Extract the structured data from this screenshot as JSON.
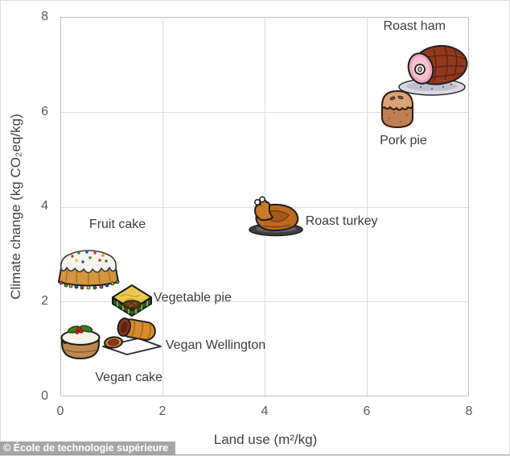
{
  "figure": {
    "background": "#ffffff",
    "watermark_text": "© École de technologie supérieure"
  },
  "colors": {
    "text": "#404040",
    "tick_text": "#595959",
    "label_text": "#3b3b3b",
    "grid": "#dcdcdc",
    "plot_border": "#bfbfbf",
    "watermark_bg": "#969696",
    "watermark_text": "#ffffff"
  },
  "chart_data": {
    "type": "scatter",
    "title": "",
    "xlabel": "Land use (m²/kg)",
    "ylabel": "Climate change (kg CO₂eq/kg)",
    "xlim": [
      0,
      8
    ],
    "ylim": [
      0,
      8
    ],
    "xticks": [
      0,
      2,
      4,
      6,
      8
    ],
    "yticks": [
      0,
      2,
      4,
      6,
      8
    ],
    "grid": true,
    "legend": false,
    "marker_style": "food-illustrations",
    "points": [
      {
        "label": "Roast ham",
        "x": 7.3,
        "y": 6.9,
        "icon": "roast-ham-icon",
        "label_position": "above"
      },
      {
        "label": "Pork pie",
        "x": 6.6,
        "y": 6.1,
        "icon": "pork-pie-icon",
        "label_position": "below"
      },
      {
        "label": "Roast turkey",
        "x": 4.2,
        "y": 3.8,
        "icon": "roast-turkey-icon",
        "label_position": "right"
      },
      {
        "label": "Fruit cake",
        "x": 0.55,
        "y": 2.75,
        "icon": "fruit-cake-icon",
        "label_position": "above"
      },
      {
        "label": "Vegetable pie",
        "x": 1.4,
        "y": 2.05,
        "icon": "vegetable-pie-icon",
        "label_position": "right"
      },
      {
        "label": "Vegan Wellington",
        "x": 1.4,
        "y": 1.3,
        "icon": "vegan-wellington-icon",
        "label_position": "right"
      },
      {
        "label": "Vegan cake",
        "x": 0.4,
        "y": 1.2,
        "icon": "vegan-cake-icon",
        "label_position": "below"
      }
    ]
  }
}
